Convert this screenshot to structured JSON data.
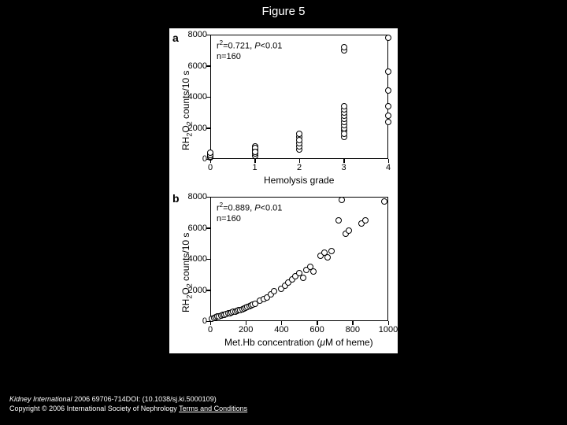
{
  "figure": {
    "title": "Figure 5",
    "background_color": "#000000",
    "panel_background": "#ffffff"
  },
  "panel_a": {
    "label": "a",
    "stats_line1": "r²=0.721, P<0.01",
    "stats_line2": "n=160",
    "type": "scatter",
    "xlabel": "Hemolysis grade",
    "ylabel": "RH₂O₂ counts/10 s",
    "xlim": [
      0,
      4
    ],
    "ylim": [
      0,
      8000
    ],
    "ytick_step": 2000,
    "yticks": [
      "0",
      "2000",
      "4000",
      "6000",
      "8000"
    ],
    "xticks": [
      "0",
      "1",
      "2",
      "3",
      "4"
    ],
    "marker_size": 8,
    "marker_stroke": "#000000",
    "marker_fill": "#ffffff",
    "points": [
      [
        0,
        100
      ],
      [
        0,
        200
      ],
      [
        0,
        300
      ],
      [
        0,
        150
      ],
      [
        0,
        250
      ],
      [
        0,
        400
      ],
      [
        1,
        200
      ],
      [
        1,
        350
      ],
      [
        1,
        500
      ],
      [
        1,
        600
      ],
      [
        1,
        800
      ],
      [
        1,
        700
      ],
      [
        1,
        450
      ],
      [
        2,
        600
      ],
      [
        2,
        800
      ],
      [
        2,
        1000
      ],
      [
        2,
        1400
      ],
      [
        2,
        1600
      ],
      [
        2,
        1200
      ],
      [
        3,
        1400
      ],
      [
        3,
        1800
      ],
      [
        3,
        2000
      ],
      [
        3,
        2200
      ],
      [
        3,
        2400
      ],
      [
        3,
        2600
      ],
      [
        3,
        2800
      ],
      [
        3,
        3000
      ],
      [
        3,
        3200
      ],
      [
        3,
        3400
      ],
      [
        3,
        7000
      ],
      [
        3,
        7200
      ],
      [
        3,
        1600
      ],
      [
        4,
        2400
      ],
      [
        4,
        2800
      ],
      [
        4,
        3400
      ],
      [
        4,
        4400
      ],
      [
        4,
        5600
      ],
      [
        4,
        7800
      ]
    ]
  },
  "panel_b": {
    "label": "b",
    "stats_line1": "r²=0.889, P<0.01",
    "stats_line2": "n=160",
    "type": "scatter",
    "xlabel": "Met.Hb concentration (μM of heme)",
    "ylabel": "RH₂O₂ counts/10 s",
    "xlim": [
      0,
      1000
    ],
    "ylim": [
      0,
      8000
    ],
    "ytick_step": 2000,
    "yticks": [
      "0",
      "2000",
      "4000",
      "6000",
      "8000"
    ],
    "xticks": [
      "0",
      "200",
      "400",
      "600",
      "800",
      "1000"
    ],
    "marker_size": 8,
    "marker_stroke": "#000000",
    "marker_fill": "#ffffff",
    "points": [
      [
        10,
        150
      ],
      [
        20,
        200
      ],
      [
        30,
        250
      ],
      [
        40,
        280
      ],
      [
        50,
        300
      ],
      [
        60,
        350
      ],
      [
        70,
        400
      ],
      [
        80,
        420
      ],
      [
        90,
        450
      ],
      [
        100,
        500
      ],
      [
        110,
        520
      ],
      [
        120,
        550
      ],
      [
        130,
        600
      ],
      [
        140,
        620
      ],
      [
        150,
        650
      ],
      [
        160,
        700
      ],
      [
        170,
        720
      ],
      [
        180,
        750
      ],
      [
        190,
        800
      ],
      [
        200,
        850
      ],
      [
        210,
        900
      ],
      [
        220,
        950
      ],
      [
        230,
        1000
      ],
      [
        240,
        1050
      ],
      [
        250,
        1100
      ],
      [
        280,
        1300
      ],
      [
        300,
        1400
      ],
      [
        320,
        1500
      ],
      [
        340,
        1700
      ],
      [
        360,
        1900
      ],
      [
        400,
        2100
      ],
      [
        420,
        2300
      ],
      [
        440,
        2500
      ],
      [
        460,
        2700
      ],
      [
        480,
        2900
      ],
      [
        500,
        3100
      ],
      [
        520,
        2800
      ],
      [
        540,
        3300
      ],
      [
        560,
        3500
      ],
      [
        580,
        3200
      ],
      [
        620,
        4200
      ],
      [
        640,
        4400
      ],
      [
        660,
        4100
      ],
      [
        680,
        4500
      ],
      [
        720,
        6500
      ],
      [
        740,
        7800
      ],
      [
        760,
        5600
      ],
      [
        780,
        5800
      ],
      [
        850,
        6300
      ],
      [
        870,
        6500
      ],
      [
        980,
        7700
      ]
    ]
  },
  "footer": {
    "line1_italic": "Kidney International",
    "line1_rest": " 2006 69706-714DOI: (10.1038/sj.ki.5000109)",
    "line2_prefix": "Copyright © 2006 International Society of Nephrology ",
    "line2_link": "Terms and Conditions"
  }
}
